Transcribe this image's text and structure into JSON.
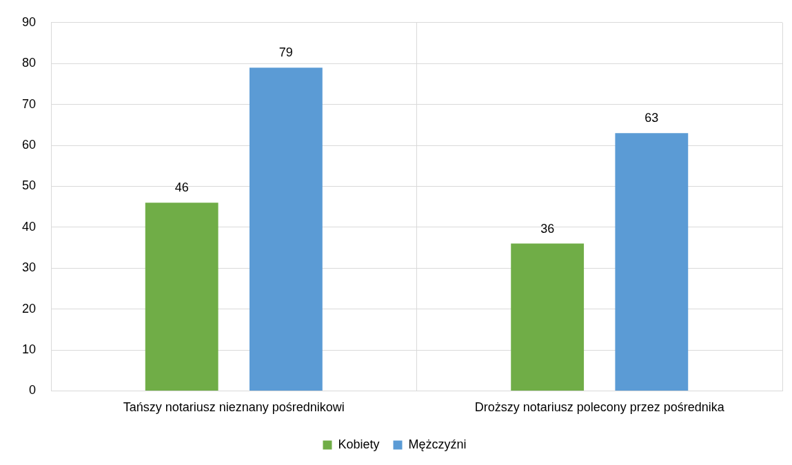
{
  "chart_data": {
    "type": "bar",
    "categories": [
      "Tańszy notariusz nieznany pośrednikowi",
      "Droższy notariusz polecony przez pośrednika"
    ],
    "series": [
      {
        "name": "Kobiety",
        "color": "#70ad47",
        "values": [
          46,
          36
        ]
      },
      {
        "name": "Mężczyźni",
        "color": "#5b9bd5",
        "values": [
          79,
          63
        ]
      }
    ],
    "ylim": [
      0,
      90
    ],
    "yticks": [
      0,
      10,
      20,
      30,
      40,
      50,
      60,
      70,
      80,
      90
    ],
    "grid": true,
    "legend": "bottom",
    "data_labels": true
  }
}
